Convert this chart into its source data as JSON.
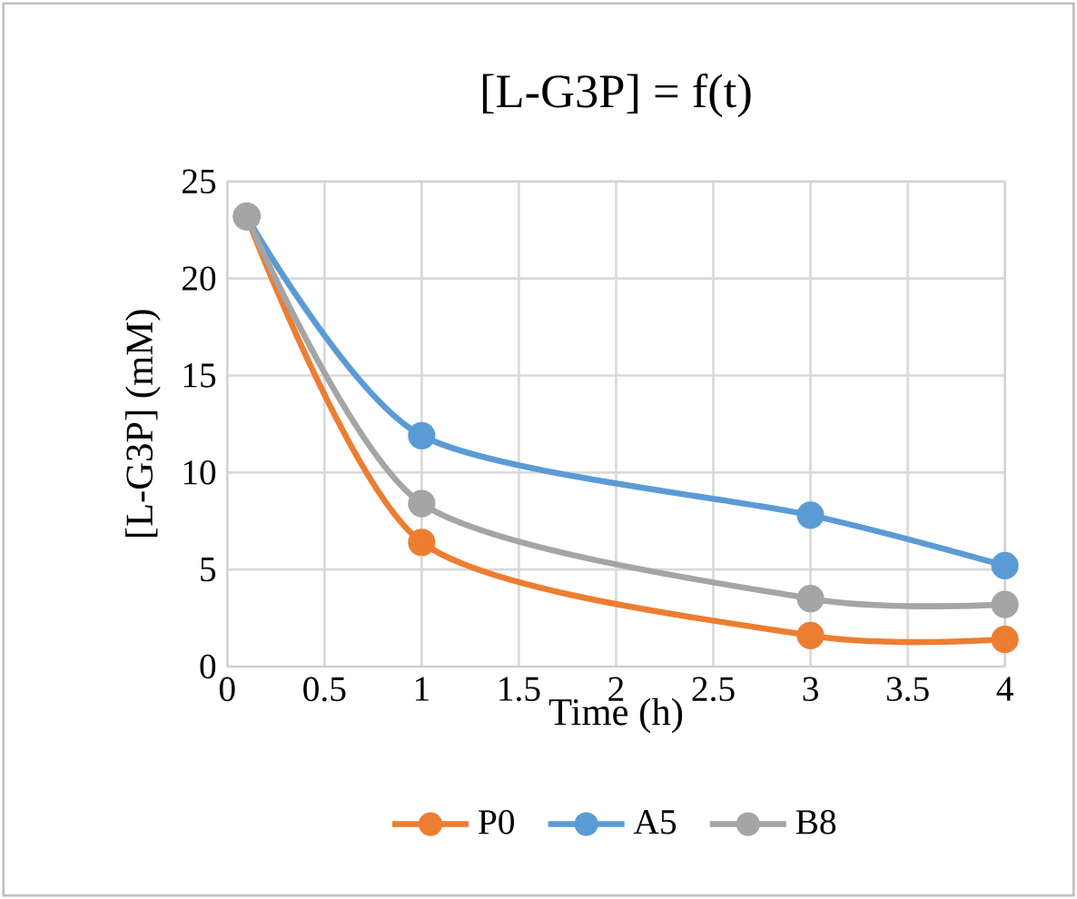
{
  "chart_data": {
    "type": "line",
    "title": "[L-G3P] = f(t)",
    "xlabel": "Time (h)",
    "ylabel": "[L-G3P] (mM)",
    "x": [
      0.1,
      1,
      3,
      4
    ],
    "series": [
      {
        "name": "P0",
        "color": "#ed7d31",
        "values": [
          23.2,
          6.4,
          1.6,
          1.4
        ]
      },
      {
        "name": "A5",
        "color": "#5b9bd5",
        "values": [
          23.2,
          11.9,
          7.8,
          5.2
        ]
      },
      {
        "name": "B8",
        "color": "#a5a5a5",
        "values": [
          23.2,
          8.4,
          3.5,
          3.2
        ]
      }
    ],
    "xlim": [
      0,
      4
    ],
    "ylim": [
      0,
      25
    ],
    "xticks": [
      0,
      0.5,
      1,
      1.5,
      2,
      2.5,
      3,
      3.5,
      4
    ],
    "yticks": [
      0,
      5,
      10,
      15,
      20,
      25
    ],
    "grid": true,
    "legend": "bottom",
    "marker": "circle",
    "line_style": "solid"
  }
}
